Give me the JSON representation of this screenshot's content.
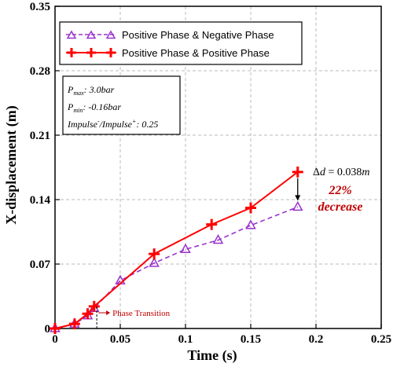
{
  "chart_data": {
    "type": "line",
    "xlabel": "Time (s)",
    "ylabel": "X-displacement (m)",
    "xlim": [
      0,
      0.25
    ],
    "ylim": [
      0,
      0.35
    ],
    "x_ticks": [
      "0",
      "0.05",
      "0.1",
      "0.15",
      "0.2",
      "0.25"
    ],
    "y_ticks": [
      "0",
      "0.07",
      "0.14",
      "0.21",
      "0.28",
      "0.35"
    ],
    "grid": "dashed",
    "legend_position": "top-left",
    "series": [
      {
        "name": "Positive Phase & Negative Phase",
        "color": "#9933cc",
        "marker": "triangle-open",
        "line": "dashed",
        "x": [
          0,
          0.015,
          0.025,
          0.03,
          0.05,
          0.076,
          0.1,
          0.125,
          0.15,
          0.186
        ],
        "y": [
          0,
          0.005,
          0.014,
          0.022,
          0.052,
          0.071,
          0.086,
          0.096,
          0.112,
          0.132
        ]
      },
      {
        "name": "Positive Phase & Positive Phase",
        "color": "#ff0000",
        "marker": "plus",
        "line": "solid",
        "x": [
          0,
          0.015,
          0.025,
          0.03,
          0.076,
          0.12,
          0.15,
          0.186
        ],
        "y": [
          0,
          0.005,
          0.016,
          0.024,
          0.081,
          0.113,
          0.131,
          0.17
        ]
      }
    ],
    "parameters": [
      {
        "base": "P",
        "sub": "max",
        "sup": "",
        "rest": ": 3.0bar"
      },
      {
        "base": "P",
        "sub": "min",
        "sup": "",
        "rest": ": -0.16bar"
      },
      {
        "base": "Impulse",
        "sub": "",
        "sup": "-",
        "rest": "/Impulse"
      },
      {
        "base": "",
        "sub": "",
        "sup": "+",
        "rest": ": 0.25"
      }
    ],
    "annotations": {
      "delta_prefix": "Δ",
      "delta_var": "d",
      "delta_value": " = 0.038",
      "delta_unit": "m",
      "decrease_pct": "22%",
      "decrease_word": "decrease",
      "transition_label": "Phase Transition",
      "transition_x": 0.032,
      "delta_x": 0.186
    }
  }
}
